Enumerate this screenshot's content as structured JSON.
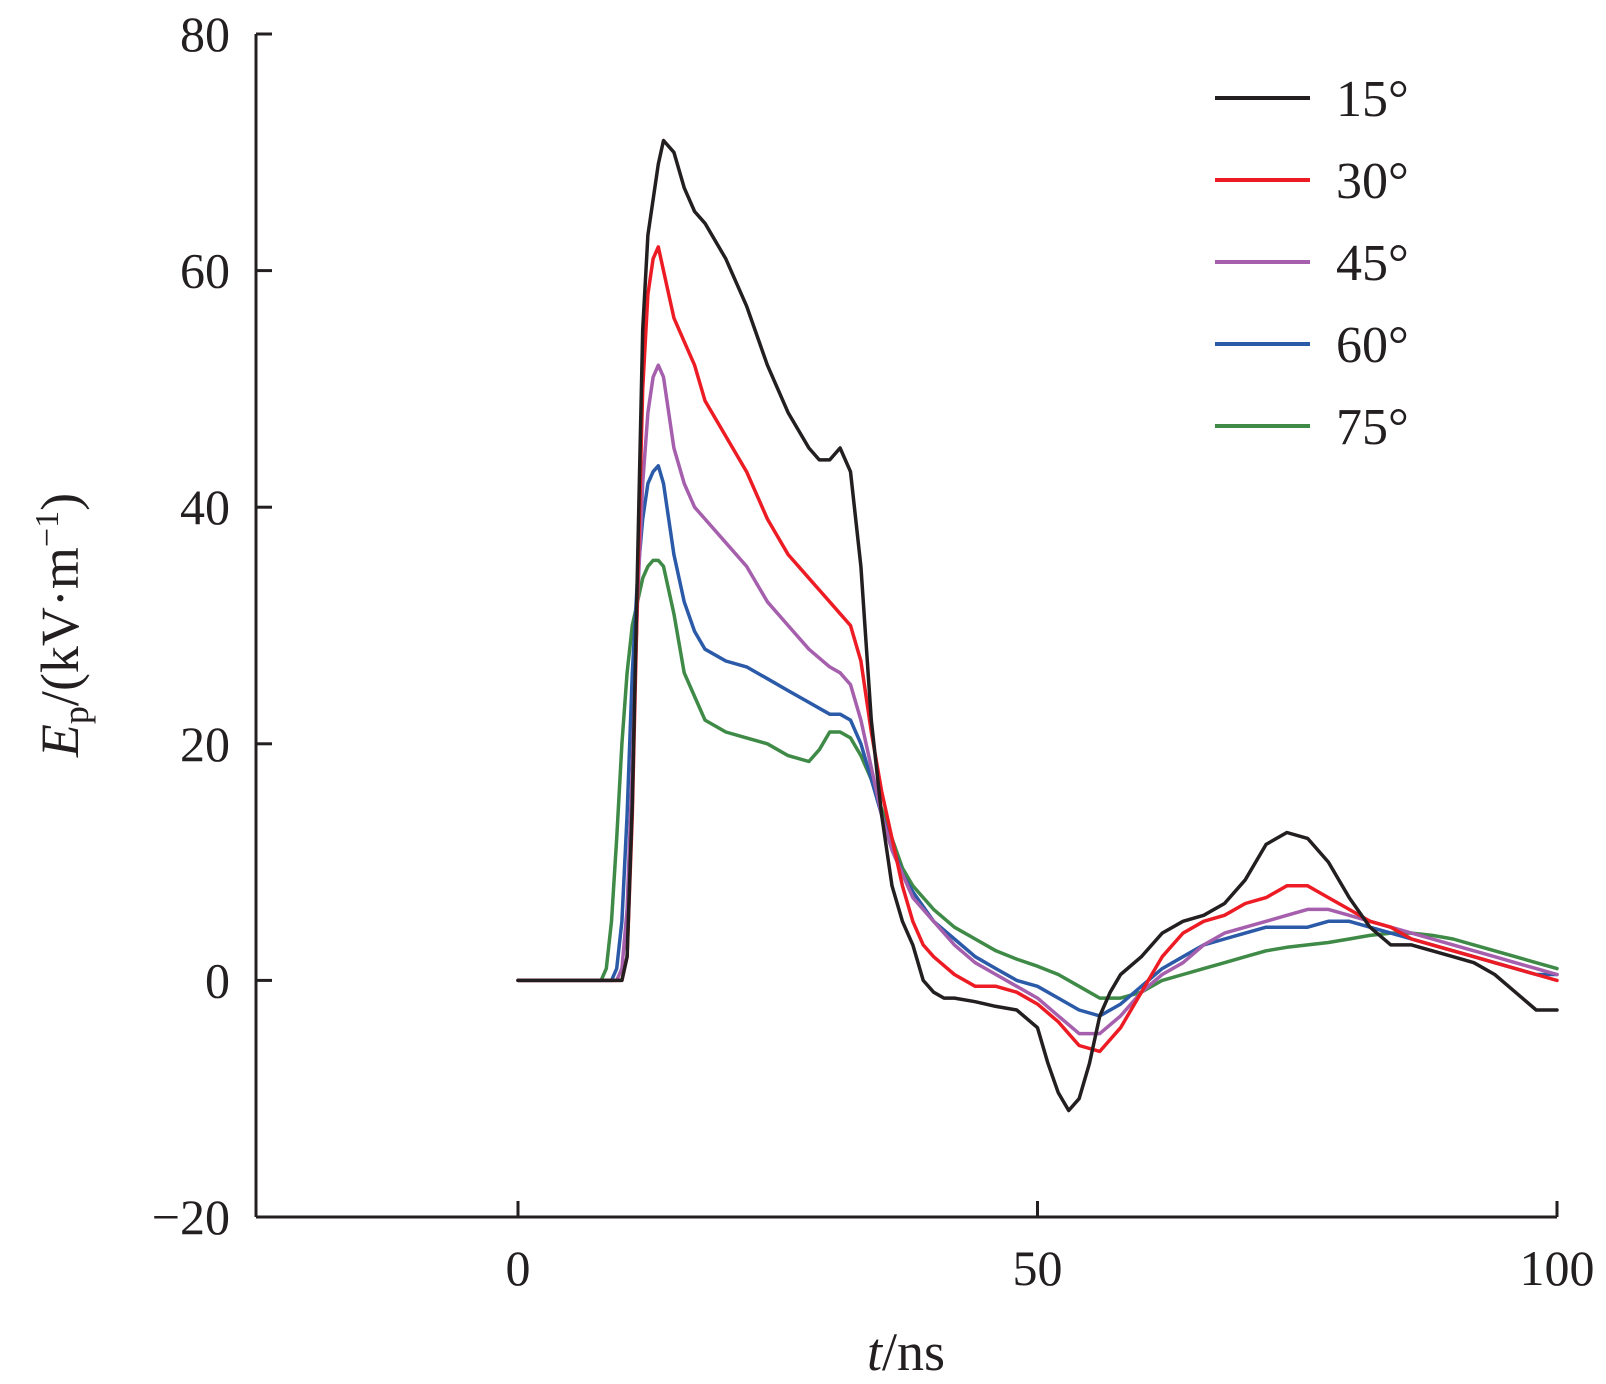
{
  "chart_data": {
    "type": "line",
    "xlabel": {
      "var": "t",
      "unit": "/ns"
    },
    "ylabel": {
      "var": "E",
      "sub": "p",
      "unit": "/(kV·m",
      "sup": "−1",
      "close": ")"
    },
    "xlim": [
      -25,
      100
    ],
    "ylim": [
      -20,
      80
    ],
    "xticks": [
      0,
      50,
      100
    ],
    "yticks": [
      -20,
      0,
      20,
      40,
      60,
      80
    ],
    "xtick_labels": [
      "0",
      "50",
      "100"
    ],
    "ytick_labels": [
      "−20",
      "0",
      "20",
      "40",
      "60",
      "80"
    ],
    "grid": false,
    "legend_position": "top-right",
    "series": [
      {
        "name": "15°",
        "color": "#231f20",
        "x": [
          0,
          10.0,
          10.5,
          11.0,
          11.5,
          12.0,
          12.5,
          13.0,
          13.5,
          14.0,
          15.0,
          16.0,
          17.0,
          18.0,
          20.0,
          22.0,
          24.0,
          26.0,
          28.0,
          29.0,
          30.0,
          31.0,
          32.0,
          33.0,
          34.0,
          35.0,
          36.0,
          37.0,
          38.0,
          39.0,
          40.0,
          41.0,
          42.0,
          44.0,
          46.0,
          48.0,
          50.0,
          51.0,
          52.0,
          53.0,
          54.0,
          55.0,
          56.0,
          57.0,
          58.0,
          60.0,
          62.0,
          64.0,
          66.0,
          68.0,
          70.0,
          72.0,
          74.0,
          76.0,
          78.0,
          80.0,
          82.0,
          84.0,
          86.0,
          88.0,
          90.0,
          92.0,
          94.0,
          96.0,
          98.0,
          100.0
        ],
        "y": [
          0,
          0,
          2,
          15,
          35,
          55,
          63,
          66,
          69,
          71,
          70,
          67,
          65,
          64,
          61,
          57,
          52,
          48,
          45,
          44,
          44,
          45,
          43,
          35,
          22,
          14,
          8,
          5,
          3,
          0,
          -1,
          -1.5,
          -1.5,
          -1.8,
          -2.2,
          -2.5,
          -4,
          -7,
          -9.5,
          -11,
          -10,
          -7,
          -3,
          -1,
          0.5,
          2,
          4,
          5,
          5.5,
          6.5,
          8.5,
          11.5,
          12.5,
          12,
          10,
          7,
          4.5,
          3,
          3,
          2.5,
          2,
          1.5,
          0.5,
          -1,
          -2.5,
          -2.5
        ]
      },
      {
        "name": "30°",
        "color": "#ed1c24",
        "x": [
          0,
          10.0,
          10.5,
          11.0,
          11.5,
          12.0,
          12.5,
          13.0,
          13.5,
          14.0,
          15.0,
          16.0,
          17.0,
          18.0,
          20.0,
          22.0,
          24.0,
          26.0,
          28.0,
          29.0,
          30.0,
          31.0,
          32.0,
          33.0,
          34.0,
          35.0,
          36.0,
          37.0,
          38.0,
          39.0,
          40.0,
          42.0,
          44.0,
          46.0,
          48.0,
          50.0,
          52.0,
          54.0,
          56.0,
          58.0,
          60.0,
          62.0,
          64.0,
          66.0,
          68.0,
          70.0,
          72.0,
          74.0,
          76.0,
          78.0,
          80.0,
          82.0,
          84.0,
          86.0,
          88.0,
          90.0,
          92.0,
          94.0,
          96.0,
          98.0,
          100.0
        ],
        "y": [
          0,
          0,
          2,
          14,
          33,
          50,
          58,
          61,
          62,
          60,
          56,
          54,
          52,
          49,
          46,
          43,
          39,
          36,
          34,
          33,
          32,
          31,
          30,
          27,
          21,
          16,
          12,
          8,
          5,
          3,
          2,
          0.5,
          -0.5,
          -0.5,
          -1,
          -2,
          -3.5,
          -5.5,
          -6,
          -4,
          -1,
          2,
          4,
          5,
          5.5,
          6.5,
          7,
          8,
          8,
          7,
          6,
          5,
          4.5,
          3.5,
          3,
          2.5,
          2,
          1.5,
          1,
          0.5,
          0
        ]
      },
      {
        "name": "45°",
        "color": "#a55fad",
        "x": [
          0,
          9.5,
          10.0,
          10.5,
          11.0,
          11.5,
          12.0,
          12.5,
          13.0,
          13.5,
          14.0,
          15.0,
          16.0,
          17.0,
          18.0,
          20.0,
          22.0,
          24.0,
          26.0,
          28.0,
          30.0,
          31.0,
          32.0,
          33.0,
          34.0,
          35.0,
          36.0,
          37.0,
          38.0,
          40.0,
          42.0,
          44.0,
          46.0,
          48.0,
          50.0,
          52.0,
          54.0,
          56.0,
          58.0,
          60.0,
          62.0,
          64.0,
          66.0,
          68.0,
          70.0,
          72.0,
          74.0,
          76.0,
          78.0,
          80.0,
          82.0,
          84.0,
          86.0,
          88.0,
          90.0,
          92.0,
          94.0,
          96.0,
          98.0,
          100.0
        ],
        "y": [
          0,
          0,
          1,
          6,
          18,
          32,
          42,
          48,
          51,
          52,
          51,
          45,
          42,
          40,
          39,
          37,
          35,
          32,
          30,
          28,
          26.5,
          26,
          25,
          22,
          18,
          14,
          11,
          9,
          7,
          5,
          3,
          1.5,
          0.5,
          -0.5,
          -1.5,
          -3,
          -4.5,
          -4.5,
          -3,
          -1,
          0.5,
          1.5,
          3,
          4,
          4.5,
          5,
          5.5,
          6,
          6,
          5.5,
          5,
          4.5,
          4,
          3.5,
          3,
          2.5,
          2,
          1.5,
          1,
          0.5
        ]
      },
      {
        "name": "60°",
        "color": "#2b5aa8",
        "x": [
          0,
          9.0,
          9.5,
          10.0,
          10.5,
          11.0,
          11.5,
          12.0,
          12.5,
          13.0,
          13.5,
          14.0,
          15.0,
          16.0,
          17.0,
          18.0,
          20.0,
          22.0,
          24.0,
          26.0,
          28.0,
          30.0,
          31.0,
          32.0,
          33.0,
          34.0,
          35.0,
          36.0,
          37.0,
          38.0,
          40.0,
          42.0,
          44.0,
          46.0,
          48.0,
          50.0,
          52.0,
          54.0,
          56.0,
          58.0,
          60.0,
          62.0,
          64.0,
          66.0,
          68.0,
          70.0,
          72.0,
          74.0,
          76.0,
          78.0,
          80.0,
          82.0,
          84.0,
          86.0,
          88.0,
          90.0,
          92.0,
          94.0,
          96.0,
          98.0,
          100.0
        ],
        "y": [
          0,
          0,
          1,
          5,
          14,
          26,
          34,
          39,
          42,
          43,
          43.5,
          42,
          36,
          32,
          29.5,
          28,
          27,
          26.5,
          25.5,
          24.5,
          23.5,
          22.5,
          22.5,
          22,
          20,
          17,
          14,
          11.5,
          9,
          7.5,
          5,
          3.5,
          2,
          1,
          0,
          -0.5,
          -1.5,
          -2.5,
          -3,
          -2,
          -0.5,
          1,
          2,
          3,
          3.5,
          4,
          4.5,
          4.5,
          4.5,
          5,
          5,
          4.5,
          4,
          3.5,
          3,
          2.5,
          2,
          1.5,
          1,
          0.5,
          0.5
        ]
      },
      {
        "name": "75°",
        "color": "#3e8a46",
        "x": [
          0,
          8.0,
          8.5,
          9.0,
          9.5,
          10.0,
          10.5,
          11.0,
          11.5,
          12.0,
          12.5,
          13.0,
          13.5,
          14.0,
          15.0,
          16.0,
          17.0,
          18.0,
          20.0,
          22.0,
          24.0,
          26.0,
          28.0,
          29.0,
          30.0,
          31.0,
          32.0,
          33.0,
          34.0,
          35.0,
          36.0,
          37.0,
          38.0,
          40.0,
          42.0,
          44.0,
          46.0,
          48.0,
          50.0,
          52.0,
          54.0,
          56.0,
          58.0,
          60.0,
          62.0,
          64.0,
          66.0,
          68.0,
          70.0,
          72.0,
          74.0,
          76.0,
          78.0,
          80.0,
          82.0,
          84.0,
          86.0,
          88.0,
          90.0,
          92.0,
          94.0,
          96.0,
          98.0,
          100.0
        ],
        "y": [
          0,
          0,
          1,
          5,
          12,
          20,
          26,
          30,
          32,
          34,
          35,
          35.5,
          35.5,
          35,
          31,
          26,
          24,
          22,
          21,
          20.5,
          20,
          19,
          18.5,
          19.5,
          21,
          21,
          20.5,
          19,
          17,
          14.5,
          12,
          9.5,
          8,
          6,
          4.5,
          3.5,
          2.5,
          1.8,
          1.2,
          0.5,
          -0.5,
          -1.5,
          -1.5,
          -1,
          0,
          0.5,
          1,
          1.5,
          2,
          2.5,
          2.8,
          3,
          3.2,
          3.5,
          3.8,
          4,
          4,
          3.8,
          3.5,
          3,
          2.5,
          2,
          1.5,
          1
        ]
      }
    ]
  }
}
